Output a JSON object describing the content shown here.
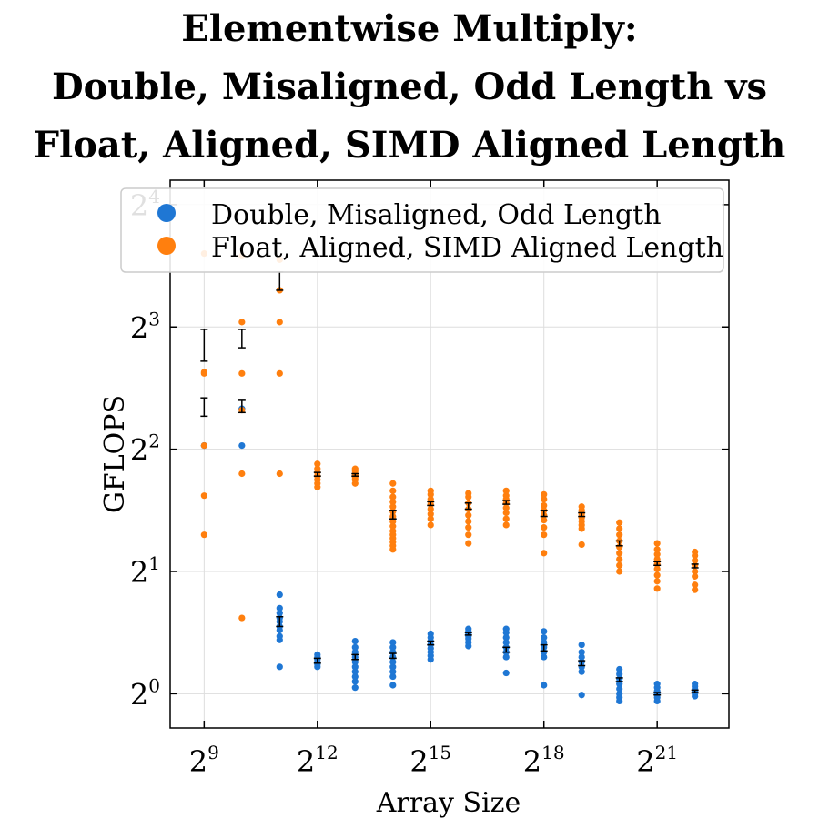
{
  "chart_data": {
    "type": "scatter",
    "title_lines": [
      "Elementwise Multiply:",
      "Double, Misaligned, Odd Length vs",
      "Float, Aligned, SIMD Aligned Length"
    ],
    "xlabel": "Array Size",
    "ylabel": "GFLOPS",
    "x_scale": "log2",
    "y_scale": "log2",
    "xlim_log2": [
      8.1,
      22.9
    ],
    "ylim_log2": [
      -0.28,
      4.2
    ],
    "x_ticks": [
      {
        "base": "2",
        "exp": "9",
        "value": 9
      },
      {
        "base": "2",
        "exp": "12",
        "value": 12
      },
      {
        "base": "2",
        "exp": "15",
        "value": 15
      },
      {
        "base": "2",
        "exp": "18",
        "value": 18
      },
      {
        "base": "2",
        "exp": "21",
        "value": 21
      }
    ],
    "y_ticks": [
      {
        "base": "2",
        "exp": "0",
        "value": 0
      },
      {
        "base": "2",
        "exp": "1",
        "value": 1
      },
      {
        "base": "2",
        "exp": "2",
        "value": 2
      },
      {
        "base": "2",
        "exp": "3",
        "value": 3
      },
      {
        "base": "2",
        "exp": "4",
        "value": 4
      }
    ],
    "grid": true,
    "legend_position": "top",
    "series": [
      {
        "name": "Double, Misaligned, Odd Length",
        "color": "#1f77d4",
        "points": [
          {
            "x_log2": 9,
            "y_log2": [
              2.03,
              2.03
            ]
          },
          {
            "x_log2": 10,
            "y_log2": [
              2.03,
              2.33,
              2.33,
              2.33
            ]
          },
          {
            "x_log2": 11,
            "y_log2": [
              0.22,
              0.44,
              0.47,
              0.52,
              0.55,
              0.59,
              0.62,
              0.66,
              0.7,
              0.81
            ]
          },
          {
            "x_log2": 12,
            "y_log2": [
              0.22,
              0.24,
              0.26,
              0.28,
              0.3,
              0.32
            ]
          },
          {
            "x_log2": 13,
            "y_log2": [
              0.05,
              0.1,
              0.14,
              0.18,
              0.22,
              0.26,
              0.3,
              0.34,
              0.38,
              0.43
            ]
          },
          {
            "x_log2": 14,
            "y_log2": [
              0.07,
              0.14,
              0.18,
              0.22,
              0.26,
              0.3,
              0.34,
              0.38,
              0.42
            ]
          },
          {
            "x_log2": 15,
            "y_log2": [
              0.28,
              0.31,
              0.34,
              0.37,
              0.4,
              0.43,
              0.46,
              0.49
            ]
          },
          {
            "x_log2": 16,
            "y_log2": [
              0.39,
              0.42,
              0.45,
              0.47,
              0.49,
              0.51,
              0.53
            ]
          },
          {
            "x_log2": 17,
            "y_log2": [
              0.17,
              0.3,
              0.34,
              0.38,
              0.42,
              0.46,
              0.5,
              0.53
            ]
          },
          {
            "x_log2": 18,
            "y_log2": [
              0.07,
              0.3,
              0.34,
              0.38,
              0.42,
              0.46,
              0.51
            ]
          },
          {
            "x_log2": 19,
            "y_log2": [
              -0.01,
              0.18,
              0.22,
              0.26,
              0.3,
              0.34,
              0.4
            ]
          },
          {
            "x_log2": 20,
            "y_log2": [
              -0.06,
              -0.03,
              0.0,
              0.04,
              0.08,
              0.12,
              0.16,
              0.2
            ]
          },
          {
            "x_log2": 21,
            "y_log2": [
              -0.06,
              -0.03,
              0.0,
              0.02,
              0.05,
              0.08
            ]
          },
          {
            "x_log2": 22,
            "y_log2": [
              -0.02,
              0.0,
              0.02,
              0.04,
              0.06,
              0.08
            ]
          }
        ]
      },
      {
        "name": "Float, Aligned, SIMD Aligned Length",
        "color": "#ff7f0e",
        "points": [
          {
            "x_log2": 9,
            "y_log2": [
              1.3,
              1.62,
              2.03,
              2.62,
              2.63,
              3.6
            ]
          },
          {
            "x_log2": 10,
            "y_log2": [
              0.62,
              1.8,
              2.32,
              2.62,
              3.04,
              3.58
            ]
          },
          {
            "x_log2": 11,
            "y_log2": [
              1.8,
              2.62,
              3.04,
              3.3,
              3.55
            ]
          },
          {
            "x_log2": 12,
            "y_log2": [
              1.69,
              1.72,
              1.75,
              1.78,
              1.81,
              1.84,
              1.88
            ]
          },
          {
            "x_log2": 13,
            "y_log2": [
              1.72,
              1.75,
              1.77,
              1.79,
              1.82,
              1.84
            ]
          },
          {
            "x_log2": 14,
            "y_log2": [
              1.18,
              1.21,
              1.24,
              1.27,
              1.3,
              1.33,
              1.37,
              1.41,
              1.45,
              1.49,
              1.53,
              1.57,
              1.61,
              1.66,
              1.72
            ]
          },
          {
            "x_log2": 15,
            "y_log2": [
              1.38,
              1.43,
              1.47,
              1.51,
              1.55,
              1.59,
              1.63,
              1.66
            ]
          },
          {
            "x_log2": 16,
            "y_log2": [
              1.23,
              1.3,
              1.36,
              1.41,
              1.46,
              1.51,
              1.56,
              1.61,
              1.64
            ]
          },
          {
            "x_log2": 17,
            "y_log2": [
              1.38,
              1.43,
              1.48,
              1.52,
              1.56,
              1.59,
              1.62,
              1.66
            ]
          },
          {
            "x_log2": 18,
            "y_log2": [
              1.15,
              1.3,
              1.36,
              1.42,
              1.46,
              1.5,
              1.54,
              1.59,
              1.63
            ]
          },
          {
            "x_log2": 19,
            "y_log2": [
              1.22,
              1.35,
              1.38,
              1.41,
              1.44,
              1.47,
              1.5,
              1.53
            ]
          },
          {
            "x_log2": 20,
            "y_log2": [
              1.0,
              1.05,
              1.1,
              1.15,
              1.2,
              1.25,
              1.3,
              1.35,
              1.4
            ]
          },
          {
            "x_log2": 21,
            "y_log2": [
              0.86,
              0.92,
              0.97,
              1.02,
              1.06,
              1.1,
              1.14,
              1.18,
              1.23
            ]
          },
          {
            "x_log2": 22,
            "y_log2": [
              0.85,
              0.89,
              0.96,
              1.0,
              1.05,
              1.09,
              1.13,
              1.16
            ]
          }
        ]
      }
    ],
    "error_bars": [
      {
        "x_log2": 9,
        "low": 2.27,
        "high": 2.42
      },
      {
        "x_log2": 9,
        "low": 2.72,
        "high": 2.98
      },
      {
        "x_log2": 10,
        "low": 2.3,
        "high": 2.4
      },
      {
        "x_log2": 10,
        "low": 2.83,
        "high": 2.98
      },
      {
        "x_log2": 11,
        "low": 0.55,
        "high": 0.63
      },
      {
        "x_log2": 11,
        "low": 3.3,
        "high": 3.45
      },
      {
        "x_log2": 12,
        "low": 0.25,
        "high": 0.29
      },
      {
        "x_log2": 12,
        "low": 1.78,
        "high": 1.81
      },
      {
        "x_log2": 13,
        "low": 0.28,
        "high": 0.32
      },
      {
        "x_log2": 13,
        "low": 1.78,
        "high": 1.8
      },
      {
        "x_log2": 14,
        "low": 0.29,
        "high": 0.33
      },
      {
        "x_log2": 14,
        "low": 1.43,
        "high": 1.5
      },
      {
        "x_log2": 15,
        "low": 0.4,
        "high": 0.43
      },
      {
        "x_log2": 15,
        "low": 1.54,
        "high": 1.57
      },
      {
        "x_log2": 16,
        "low": 0.48,
        "high": 0.5
      },
      {
        "x_log2": 16,
        "low": 1.51,
        "high": 1.56
      },
      {
        "x_log2": 17,
        "low": 0.34,
        "high": 0.38
      },
      {
        "x_log2": 17,
        "low": 1.55,
        "high": 1.58
      },
      {
        "x_log2": 18,
        "low": 0.35,
        "high": 0.4
      },
      {
        "x_log2": 18,
        "low": 1.45,
        "high": 1.5
      },
      {
        "x_log2": 19,
        "low": 0.23,
        "high": 0.27
      },
      {
        "x_log2": 19,
        "low": 1.45,
        "high": 1.48
      },
      {
        "x_log2": 20,
        "low": 0.1,
        "high": 0.13
      },
      {
        "x_log2": 20,
        "low": 1.21,
        "high": 1.25
      },
      {
        "x_log2": 21,
        "low": -0.01,
        "high": 0.01
      },
      {
        "x_log2": 21,
        "low": 1.05,
        "high": 1.08
      },
      {
        "x_log2": 22,
        "low": 0.01,
        "high": 0.03
      },
      {
        "x_log2": 22,
        "low": 1.03,
        "high": 1.06
      }
    ]
  }
}
